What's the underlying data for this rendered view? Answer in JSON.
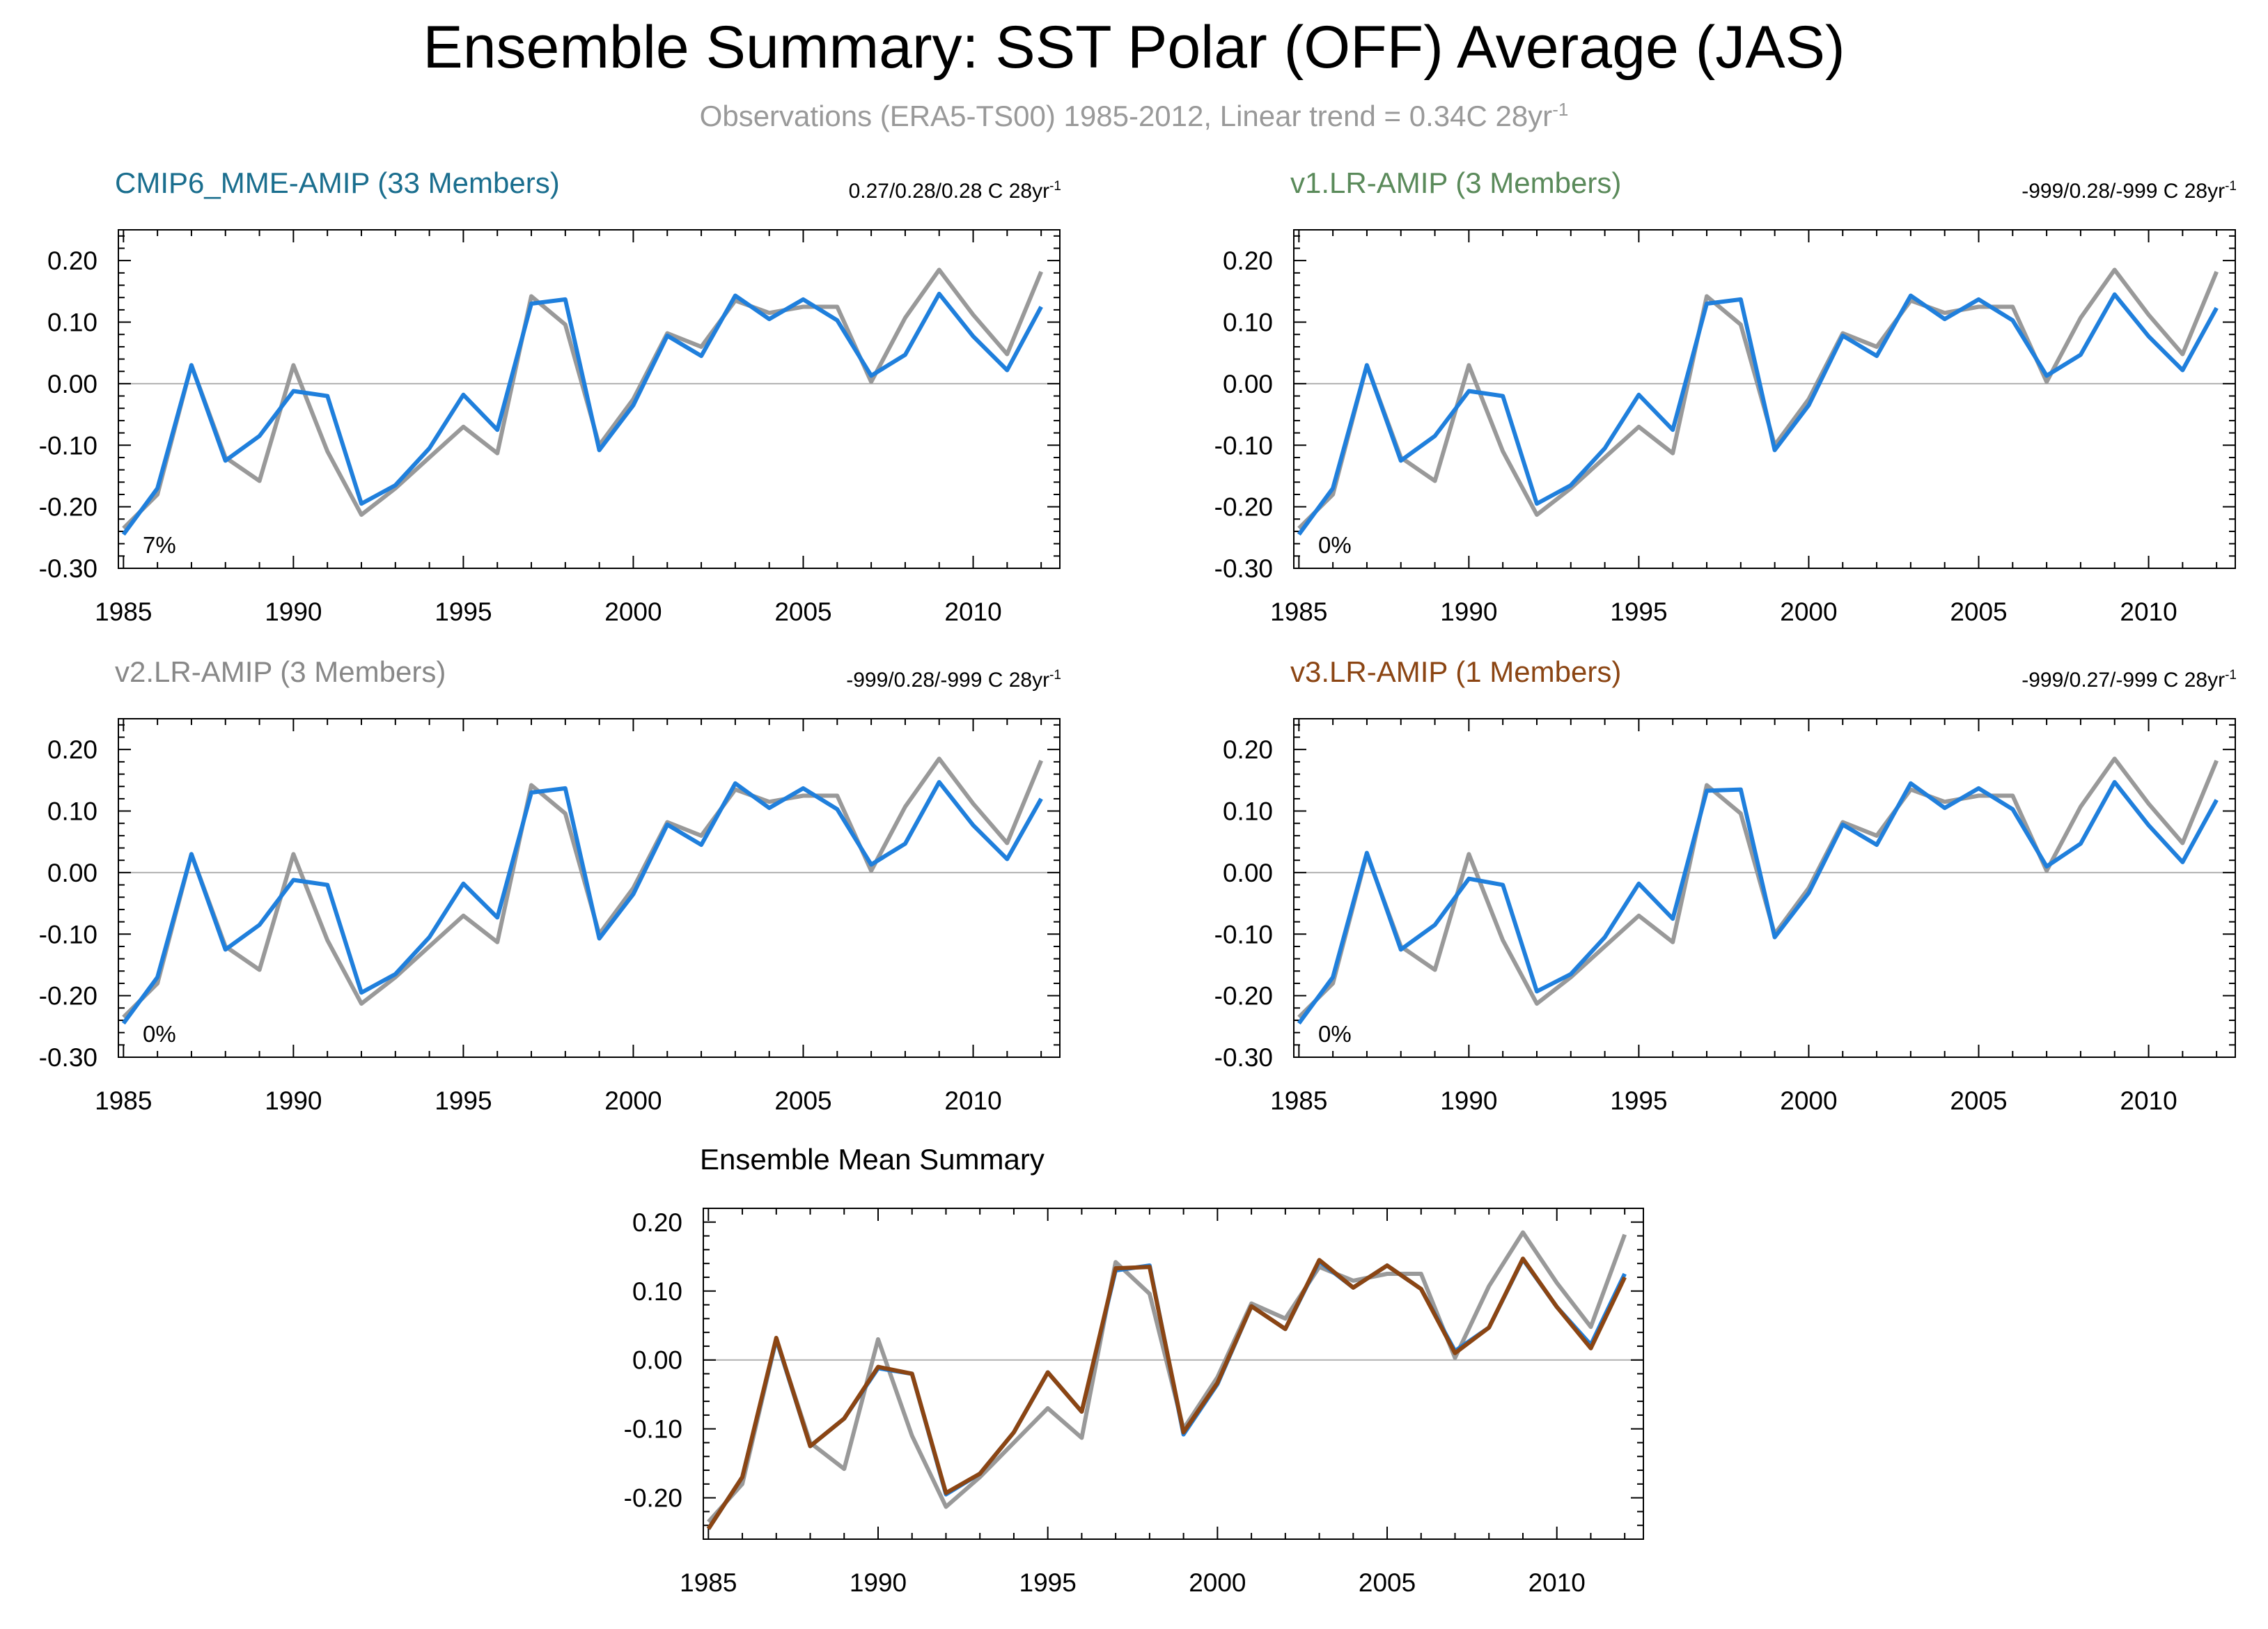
{
  "title": "Ensemble Summary: SST Polar (OFF) Average (JAS)",
  "subtitle": {
    "text": "Observations (ERA5-TS00) 1985-2012, Linear trend = 0.34C 28yr",
    "sup": "-1"
  },
  "colors": {
    "observations": "#999999",
    "model": "#1f7fdc",
    "mean": "#8b4513",
    "zero_line": "#b0b0b0",
    "frame": "#000000"
  },
  "chart_data": [
    {
      "type": "line",
      "title": "CMIP6_MME-AMIP (33 Members)",
      "title_color": "#1a6e8e",
      "trend_text": "0.27/0.28/0.28 C 28yr",
      "trend_sup": "-1",
      "percent_label": "7%",
      "ylim": [
        -0.3,
        0.25
      ],
      "yticks": [
        "0.20",
        "0.10",
        "0.00",
        "-0.10",
        "-0.20",
        "-0.30"
      ],
      "xticks": [
        "1985",
        "1990",
        "1995",
        "2000",
        "2005",
        "2010"
      ],
      "x": [
        1985,
        1986,
        1987,
        1988,
        1989,
        1990,
        1991,
        1992,
        1993,
        1994,
        1995,
        1996,
        1997,
        1998,
        1999,
        2000,
        2001,
        2002,
        2003,
        2004,
        2005,
        2006,
        2007,
        2008,
        2009,
        2010,
        2011,
        2012
      ],
      "series": [
        {
          "role": "observations",
          "values": [
            -0.235,
            -0.18,
            0.03,
            -0.12,
            -0.158,
            0.03,
            -0.11,
            -0.213,
            -0.17,
            -0.12,
            -0.07,
            -0.113,
            0.142,
            0.096,
            -0.1,
            -0.025,
            0.082,
            0.06,
            0.135,
            0.115,
            0.125,
            0.125,
            0.003,
            0.107,
            0.185,
            0.112,
            0.048,
            0.182
          ]
        },
        {
          "role": "model",
          "values": [
            -0.245,
            -0.17,
            0.03,
            -0.125,
            -0.085,
            -0.012,
            -0.02,
            -0.195,
            -0.165,
            -0.105,
            -0.018,
            -0.075,
            0.13,
            0.137,
            -0.108,
            -0.035,
            0.078,
            0.045,
            0.143,
            0.105,
            0.137,
            0.103,
            0.013,
            0.047,
            0.146,
            0.077,
            0.022,
            0.125
          ]
        }
      ]
    },
    {
      "type": "line",
      "title": "v1.LR-AMIP (3 Members)",
      "title_color": "#5a8a5a",
      "trend_text": "-999/0.28/-999 C 28yr",
      "trend_sup": "-1",
      "percent_label": "0%",
      "ylim": [
        -0.3,
        0.25
      ],
      "yticks": [
        "0.20",
        "0.10",
        "0.00",
        "-0.10",
        "-0.20",
        "-0.30"
      ],
      "xticks": [
        "1985",
        "1990",
        "1995",
        "2000",
        "2005",
        "2010"
      ],
      "x": [
        1985,
        1986,
        1987,
        1988,
        1989,
        1990,
        1991,
        1992,
        1993,
        1994,
        1995,
        1996,
        1997,
        1998,
        1999,
        2000,
        2001,
        2002,
        2003,
        2004,
        2005,
        2006,
        2007,
        2008,
        2009,
        2010,
        2011,
        2012
      ],
      "series": [
        {
          "role": "observations",
          "values": [
            -0.235,
            -0.18,
            0.03,
            -0.12,
            -0.158,
            0.03,
            -0.11,
            -0.213,
            -0.17,
            -0.12,
            -0.07,
            -0.113,
            0.142,
            0.096,
            -0.1,
            -0.025,
            0.082,
            0.06,
            0.135,
            0.115,
            0.125,
            0.125,
            0.003,
            0.107,
            0.185,
            0.112,
            0.048,
            0.182
          ]
        },
        {
          "role": "model",
          "values": [
            -0.245,
            -0.17,
            0.03,
            -0.125,
            -0.085,
            -0.012,
            -0.02,
            -0.195,
            -0.165,
            -0.105,
            -0.018,
            -0.075,
            0.13,
            0.137,
            -0.108,
            -0.035,
            0.078,
            0.045,
            0.143,
            0.105,
            0.137,
            0.103,
            0.013,
            0.047,
            0.145,
            0.077,
            0.022,
            0.123
          ]
        }
      ]
    },
    {
      "type": "line",
      "title": "v2.LR-AMIP (3 Members)",
      "title_color": "#888888",
      "trend_text": "-999/0.28/-999 C 28yr",
      "trend_sup": "-1",
      "percent_label": "0%",
      "ylim": [
        -0.3,
        0.25
      ],
      "yticks": [
        "0.20",
        "0.10",
        "0.00",
        "-0.10",
        "-0.20",
        "-0.30"
      ],
      "xticks": [
        "1985",
        "1990",
        "1995",
        "2000",
        "2005",
        "2010"
      ],
      "x": [
        1985,
        1986,
        1987,
        1988,
        1989,
        1990,
        1991,
        1992,
        1993,
        1994,
        1995,
        1996,
        1997,
        1998,
        1999,
        2000,
        2001,
        2002,
        2003,
        2004,
        2005,
        2006,
        2007,
        2008,
        2009,
        2010,
        2011,
        2012
      ],
      "series": [
        {
          "role": "observations",
          "values": [
            -0.235,
            -0.18,
            0.03,
            -0.12,
            -0.158,
            0.03,
            -0.11,
            -0.213,
            -0.17,
            -0.12,
            -0.07,
            -0.113,
            0.142,
            0.096,
            -0.1,
            -0.025,
            0.082,
            0.06,
            0.135,
            0.115,
            0.125,
            0.125,
            0.003,
            0.107,
            0.185,
            0.112,
            0.048,
            0.182
          ]
        },
        {
          "role": "model",
          "values": [
            -0.245,
            -0.17,
            0.03,
            -0.125,
            -0.085,
            -0.012,
            -0.02,
            -0.195,
            -0.165,
            -0.105,
            -0.018,
            -0.073,
            0.13,
            0.137,
            -0.107,
            -0.035,
            0.078,
            0.045,
            0.145,
            0.105,
            0.137,
            0.103,
            0.013,
            0.047,
            0.147,
            0.077,
            0.022,
            0.12
          ]
        }
      ]
    },
    {
      "type": "line",
      "title": "v3.LR-AMIP (1 Members)",
      "title_color": "#8b4513",
      "trend_text": "-999/0.27/-999 C 28yr",
      "trend_sup": "-1",
      "percent_label": "0%",
      "ylim": [
        -0.3,
        0.25
      ],
      "yticks": [
        "0.20",
        "0.10",
        "0.00",
        "-0.10",
        "-0.20",
        "-0.30"
      ],
      "xticks": [
        "1985",
        "1990",
        "1995",
        "2000",
        "2005",
        "2010"
      ],
      "x": [
        1985,
        1986,
        1987,
        1988,
        1989,
        1990,
        1991,
        1992,
        1993,
        1994,
        1995,
        1996,
        1997,
        1998,
        1999,
        2000,
        2001,
        2002,
        2003,
        2004,
        2005,
        2006,
        2007,
        2008,
        2009,
        2010,
        2011,
        2012
      ],
      "series": [
        {
          "role": "observations",
          "values": [
            -0.235,
            -0.18,
            0.03,
            -0.12,
            -0.158,
            0.03,
            -0.11,
            -0.213,
            -0.17,
            -0.12,
            -0.07,
            -0.113,
            0.142,
            0.096,
            -0.1,
            -0.025,
            0.082,
            0.06,
            0.135,
            0.115,
            0.125,
            0.125,
            0.003,
            0.107,
            0.185,
            0.112,
            0.048,
            0.182
          ]
        },
        {
          "role": "model",
          "values": [
            -0.245,
            -0.17,
            0.032,
            -0.125,
            -0.085,
            -0.01,
            -0.02,
            -0.193,
            -0.165,
            -0.105,
            -0.018,
            -0.075,
            0.133,
            0.135,
            -0.105,
            -0.033,
            0.078,
            0.045,
            0.145,
            0.105,
            0.137,
            0.103,
            0.01,
            0.047,
            0.147,
            0.077,
            0.017,
            0.118
          ]
        }
      ]
    },
    {
      "type": "line",
      "title": "Ensemble Mean Summary",
      "title_color": "#000000",
      "ylim": [
        -0.26,
        0.22
      ],
      "yticks": [
        "0.20",
        "0.10",
        "0.00",
        "-0.10",
        "-0.20"
      ],
      "xticks": [
        "1985",
        "1990",
        "1995",
        "2000",
        "2005",
        "2010"
      ],
      "x": [
        1985,
        1986,
        1987,
        1988,
        1989,
        1990,
        1991,
        1992,
        1993,
        1994,
        1995,
        1996,
        1997,
        1998,
        1999,
        2000,
        2001,
        2002,
        2003,
        2004,
        2005,
        2006,
        2007,
        2008,
        2009,
        2010,
        2011,
        2012
      ],
      "series": [
        {
          "role": "observations",
          "values": [
            -0.235,
            -0.18,
            0.03,
            -0.12,
            -0.158,
            0.03,
            -0.11,
            -0.213,
            -0.17,
            -0.12,
            -0.07,
            -0.113,
            0.142,
            0.096,
            -0.1,
            -0.025,
            0.082,
            0.06,
            0.135,
            0.115,
            0.125,
            0.125,
            0.003,
            0.107,
            0.185,
            0.112,
            0.048,
            0.182
          ]
        },
        {
          "role": "model",
          "values": [
            -0.245,
            -0.17,
            0.03,
            -0.125,
            -0.085,
            -0.012,
            -0.02,
            -0.195,
            -0.165,
            -0.105,
            -0.018,
            -0.075,
            0.13,
            0.137,
            -0.108,
            -0.035,
            0.078,
            0.045,
            0.143,
            0.105,
            0.137,
            0.103,
            0.013,
            0.047,
            0.146,
            0.077,
            0.022,
            0.125
          ]
        },
        {
          "role": "mean",
          "values": [
            -0.245,
            -0.17,
            0.032,
            -0.125,
            -0.085,
            -0.01,
            -0.02,
            -0.193,
            -0.165,
            -0.105,
            -0.018,
            -0.075,
            0.133,
            0.135,
            -0.105,
            -0.033,
            0.078,
            0.045,
            0.145,
            0.105,
            0.137,
            0.103,
            0.01,
            0.047,
            0.147,
            0.077,
            0.017,
            0.12
          ]
        }
      ]
    }
  ]
}
